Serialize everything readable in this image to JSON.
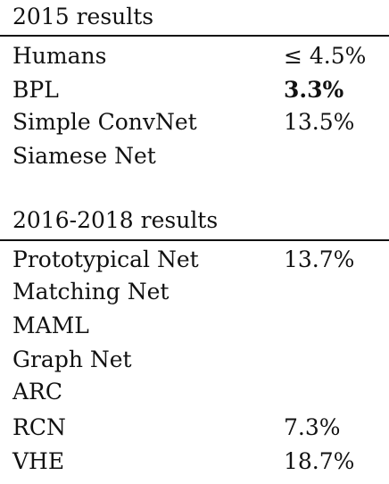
{
  "sections": [
    {
      "title": "2015 results",
      "rows": [
        {
          "name": "Humans",
          "value": "≤ 4.5%",
          "bold": false
        },
        {
          "name": "BPL",
          "value": "3.3%",
          "bold": true
        },
        {
          "name": "Simple ConvNet",
          "value": "13.5%",
          "bold": false
        },
        {
          "name": "Siamese Net",
          "value": "",
          "bold": false
        }
      ]
    },
    {
      "title": "2016-2018 results",
      "rows": [
        {
          "name": "Prototypical Net",
          "value": "13.7%",
          "bold": false
        },
        {
          "name": "Matching Net",
          "value": "",
          "bold": false
        },
        {
          "name": "MAML",
          "value": "",
          "bold": false
        },
        {
          "name": "Graph Net",
          "value": "",
          "bold": false
        },
        {
          "name": "ARC",
          "value": "",
          "bold": false
        },
        {
          "name": "RCN",
          "value": "7.3%",
          "bold": false
        },
        {
          "name": "VHE",
          "value": "18.7%",
          "bold": false
        }
      ]
    }
  ]
}
